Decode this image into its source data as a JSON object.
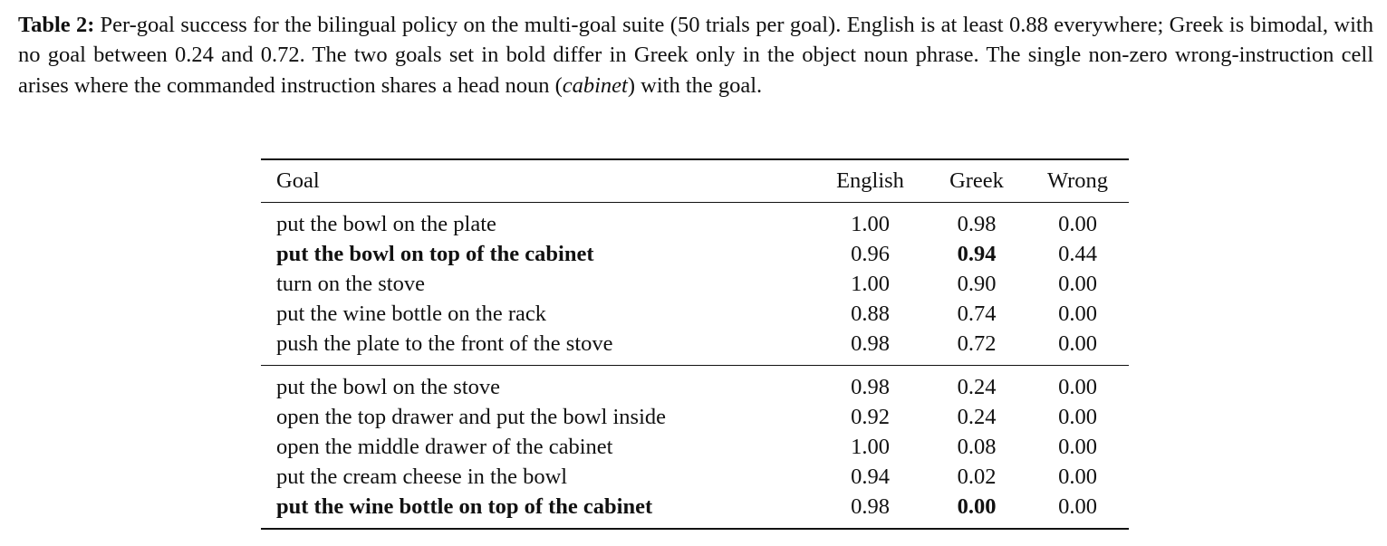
{
  "caption": {
    "label": "Table 2:",
    "text_before": "Per-goal success for the bilingual policy on the multi-goal suite (50 trials per goal). English is at least 0.88 everywhere; Greek is bimodal, with no goal between 0.24 and 0.72. The two goals set in bold differ in Greek only in the object noun phrase. The single non-zero wrong-instruction cell arises where the commanded instruction shares a head noun (",
    "emphasis": "cabinet",
    "text_after": ") with the goal."
  },
  "table": {
    "header": [
      "Goal",
      "English",
      "Greek",
      "Wrong"
    ],
    "groups": [
      [
        {
          "goal": "put the bowl on the plate",
          "english": "1.00",
          "greek": "0.98",
          "wrong": "0.00",
          "bold": false
        },
        {
          "goal": "put the bowl on top of the cabinet",
          "english": "0.96",
          "greek": "0.94",
          "wrong": "0.44",
          "bold": true
        },
        {
          "goal": "turn on the stove",
          "english": "1.00",
          "greek": "0.90",
          "wrong": "0.00",
          "bold": false
        },
        {
          "goal": "put the wine bottle on the rack",
          "english": "0.88",
          "greek": "0.74",
          "wrong": "0.00",
          "bold": false
        },
        {
          "goal": "push the plate to the front of the stove",
          "english": "0.98",
          "greek": "0.72",
          "wrong": "0.00",
          "bold": false
        }
      ],
      [
        {
          "goal": "put the bowl on the stove",
          "english": "0.98",
          "greek": "0.24",
          "wrong": "0.00",
          "bold": false
        },
        {
          "goal": "open the top drawer and put the bowl inside",
          "english": "0.92",
          "greek": "0.24",
          "wrong": "0.00",
          "bold": false
        },
        {
          "goal": "open the middle drawer of the cabinet",
          "english": "1.00",
          "greek": "0.08",
          "wrong": "0.00",
          "bold": false
        },
        {
          "goal": "put the cream cheese in the bowl",
          "english": "0.94",
          "greek": "0.02",
          "wrong": "0.00",
          "bold": false
        },
        {
          "goal": "put the wine bottle on top of the cabinet",
          "english": "0.98",
          "greek": "0.00",
          "wrong": "0.00",
          "bold": true
        }
      ]
    ]
  }
}
